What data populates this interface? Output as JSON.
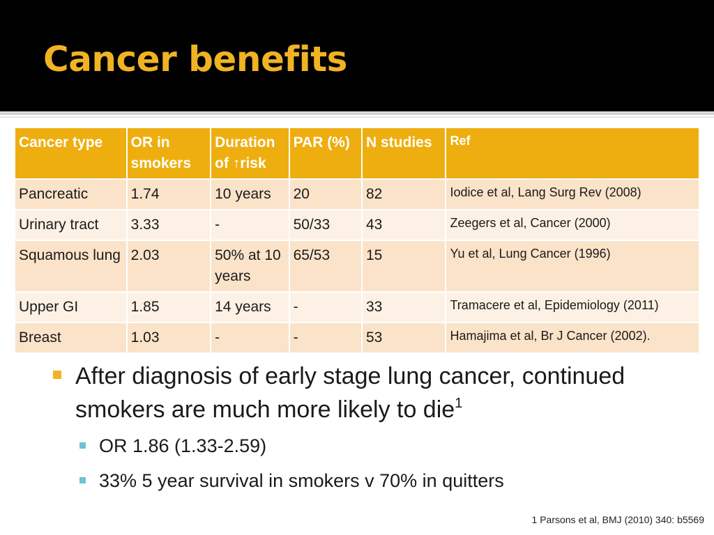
{
  "slide": {
    "title": "Cancer benefits",
    "colors": {
      "title": "#f0b324",
      "header_bg": "#eeae0f",
      "row_bg": "#fbe3c9",
      "row_alt_bg": "#fdf1e5",
      "sub_bullet": "#6cc3d6"
    }
  },
  "table": {
    "headers": [
      "Cancer type",
      "OR in smokers",
      "Duration of ↑risk",
      "PAR (%)",
      "N studies",
      "Ref"
    ],
    "rows": [
      [
        "Pancreatic",
        "1.74",
        "10 years",
        "20",
        "82",
        "Iodice et al, Lang Surg Rev (2008)"
      ],
      [
        "Urinary tract",
        "3.33",
        "-",
        "50/33",
        "43",
        "Zeegers et al, Cancer (2000)"
      ],
      [
        "Squamous lung",
        "2.03",
        "50% at 10 years",
        "65/53",
        "15",
        "Yu et al, Lung Cancer (1996)"
      ],
      [
        "Upper GI",
        "1.85",
        "14 years",
        "-",
        "33",
        "Tramacere et al, Epidemiology (2011)"
      ],
      [
        "Breast",
        "1.03",
        "-",
        "-",
        "53",
        "Hamajima et al, Br J Cancer (2002)."
      ]
    ]
  },
  "bullets": {
    "main_text": "After diagnosis of early stage lung cancer, continued smokers are much more likely to die",
    "main_sup": "1",
    "sub": [
      "OR 1.86 (1.33-2.59)",
      "33% 5 year survival in smokers v 70% in quitters"
    ]
  },
  "footnote": "1 Parsons et al, BMJ (2010) 340: b5569"
}
